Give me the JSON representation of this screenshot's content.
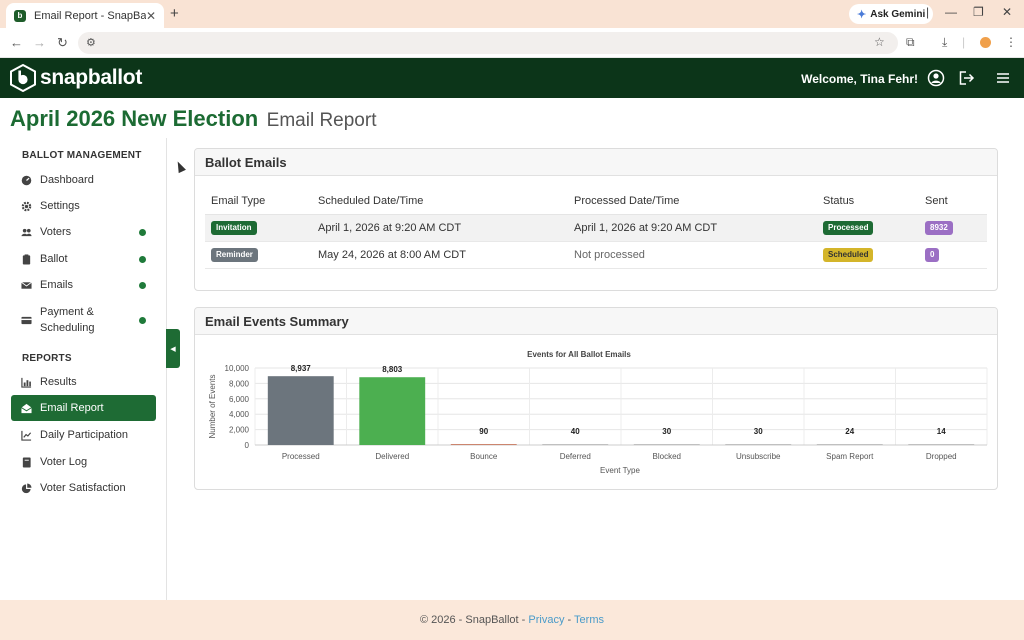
{
  "browser": {
    "tab_title": "Email Report - SnapBallot",
    "gemini_label": "Ask Gemini"
  },
  "header": {
    "brand": "snapballot",
    "welcome": "Welcome, Tina Fehr!"
  },
  "page": {
    "title": "April 2026 New Election",
    "subtitle": "Email Report"
  },
  "sidebar": {
    "ballot_section": "BALLOT MANAGEMENT",
    "ballot_items": [
      {
        "label": "Dashboard",
        "icon": "dashboard-icon",
        "dot": false
      },
      {
        "label": "Settings",
        "icon": "gear-icon",
        "dot": false
      },
      {
        "label": "Voters",
        "icon": "users-icon",
        "dot": true
      },
      {
        "label": "Ballot",
        "icon": "clipboard-icon",
        "dot": true
      },
      {
        "label": "Emails",
        "icon": "envelope-icon",
        "dot": true
      },
      {
        "label": "Payment &",
        "label2": "Scheduling",
        "icon": "credit-card-icon",
        "dot": true
      }
    ],
    "reports_section": "REPORTS",
    "report_items": [
      {
        "label": "Results",
        "icon": "bar-chart-icon"
      },
      {
        "label": "Email Report",
        "icon": "envelope-open-icon",
        "active": true
      },
      {
        "label": "Daily Participation",
        "icon": "line-chart-icon"
      },
      {
        "label": "Voter Log",
        "icon": "book-icon"
      },
      {
        "label": "Voter Satisfaction",
        "icon": "pie-chart-icon"
      }
    ]
  },
  "ballot_emails": {
    "title": "Ballot Emails",
    "columns": [
      "Email Type",
      "Scheduled Date/Time",
      "Processed Date/Time",
      "Status",
      "Sent"
    ],
    "rows": [
      {
        "type": "Invitation",
        "type_color": "#1e6b34",
        "scheduled": "April 1, 2026 at 9:20 AM CDT",
        "processed": "April 1, 2026 at 9:20 AM CDT",
        "status": "Processed",
        "status_color": "#1e6b34",
        "sent": "8932"
      },
      {
        "type": "Reminder",
        "type_color": "#6c757d",
        "scheduled": "May 24, 2026 at 8:00 AM CDT",
        "processed": "Not processed",
        "status": "Scheduled",
        "status_color": "#d4b52a",
        "sent": "0"
      }
    ],
    "sent_color": "#9b6fc4"
  },
  "events_summary": {
    "title": "Email Events Summary"
  },
  "chart_data": {
    "type": "bar",
    "title": "Events for All Ballot Emails",
    "xlabel": "Event Type",
    "ylabel": "Number of Events",
    "categories": [
      "Processed",
      "Delivered",
      "Bounce",
      "Deferred",
      "Blocked",
      "Unsubscribe",
      "Spam Report",
      "Dropped"
    ],
    "values": [
      8937,
      8803,
      90,
      40,
      30,
      30,
      24,
      14
    ],
    "value_labels": [
      "8,937",
      "8,803",
      "90",
      "40",
      "30",
      "30",
      "24",
      "14"
    ],
    "bar_colors": [
      "#6c757d",
      "#4caf50",
      "#c0674a",
      "#b0b0b0",
      "#b0b0b0",
      "#b0b0b0",
      "#b0b0b0",
      "#b0b0b0"
    ],
    "ylim": [
      0,
      10000
    ],
    "yticks": [
      0,
      2000,
      4000,
      6000,
      8000,
      10000
    ],
    "ytick_labels": [
      "0",
      "2,000",
      "4,000",
      "6,000",
      "8,000",
      "10,000"
    ],
    "grid": true,
    "legend": "none"
  },
  "footer": {
    "copyright": "© 2026 - SnapBallot -",
    "privacy": "Privacy",
    "sep": "-",
    "terms": "Terms"
  }
}
